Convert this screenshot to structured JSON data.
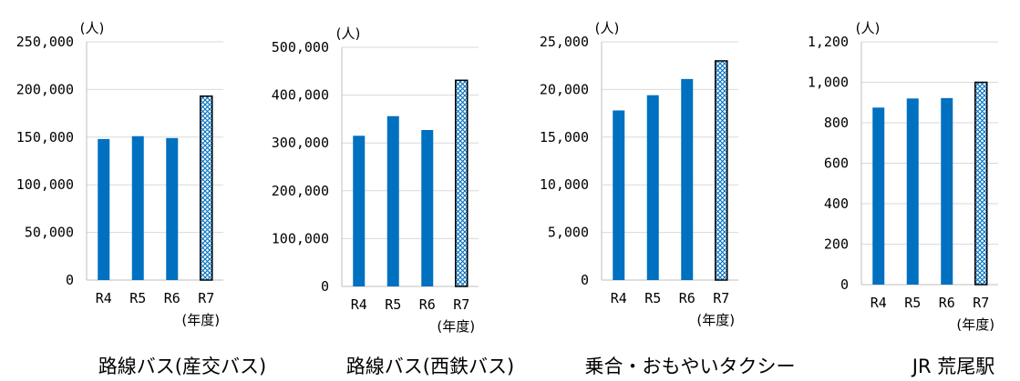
{
  "colors": {
    "bar": "#0070c0",
    "highlight_fill": "#ffffff",
    "highlight_pattern": "#0070c0",
    "grid": "#d9d9d9",
    "axis": "#bfbfbf"
  },
  "chart_data": [
    {
      "type": "bar",
      "title": "路線バス(産交バス)",
      "ylabel": "(人)",
      "xlabel": "(年度)",
      "categories": [
        "R4",
        "R5",
        "R6",
        "R7"
      ],
      "values": [
        148000,
        151000,
        149000,
        193000
      ],
      "highlight_index": 3,
      "ylim": [
        0,
        250000
      ],
      "yticks": [
        0,
        50000,
        100000,
        150000,
        200000,
        250000
      ],
      "ytick_labels": [
        "0",
        "50,000",
        "100,000",
        "150,000",
        "200,000",
        "250,000"
      ],
      "grid": true
    },
    {
      "type": "bar",
      "title": "路線バス(西鉄バス)",
      "ylabel": "(人)",
      "xlabel": "(年度)",
      "categories": [
        "R4",
        "R5",
        "R6",
        "R7"
      ],
      "values": [
        315000,
        356000,
        327000,
        431000
      ],
      "highlight_index": 3,
      "ylim": [
        0,
        500000
      ],
      "yticks": [
        0,
        100000,
        200000,
        300000,
        400000,
        500000
      ],
      "ytick_labels": [
        "0",
        "100,000",
        "200,000",
        "300,000",
        "400,000",
        "500,000"
      ],
      "grid": true
    },
    {
      "type": "bar",
      "title": "乗合・おもやいタクシー",
      "ylabel": "(人)",
      "xlabel": "(年度)",
      "categories": [
        "R4",
        "R5",
        "R6",
        "R7"
      ],
      "values": [
        17800,
        19400,
        21100,
        23000
      ],
      "highlight_index": 3,
      "ylim": [
        0,
        25000
      ],
      "yticks": [
        0,
        5000,
        10000,
        15000,
        20000,
        25000
      ],
      "ytick_labels": [
        "0",
        "5,000",
        "10,000",
        "15,000",
        "20,000",
        "25,000"
      ],
      "grid": true
    },
    {
      "type": "bar",
      "title": "JR 荒尾駅",
      "ylabel": "(人)",
      "xlabel": "(年度)",
      "categories": [
        "R4",
        "R5",
        "R6",
        "R7"
      ],
      "values": [
        875,
        920,
        922,
        1000
      ],
      "highlight_index": 3,
      "ylim": [
        0,
        1200
      ],
      "yticks": [
        0,
        200,
        400,
        600,
        800,
        1000,
        1200
      ],
      "ytick_labels": [
        "0",
        "200",
        "400",
        "600",
        "800",
        "1,000",
        "1,200"
      ],
      "grid": true
    }
  ]
}
